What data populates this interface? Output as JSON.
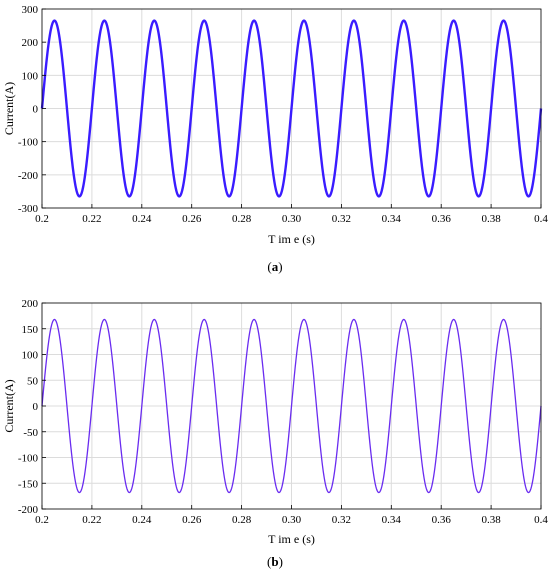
{
  "chart_data": [
    {
      "id": "a",
      "type": "line",
      "caption": "(a)",
      "xlabel": "T im e (s)",
      "ylabel": "Current(A)",
      "xlim": [
        0.2,
        0.4
      ],
      "ylim": [
        -300,
        300
      ],
      "xticks": [
        0.2,
        0.22,
        0.24,
        0.26,
        0.28,
        0.3,
        0.32,
        0.34,
        0.36,
        0.38,
        0.4
      ],
      "xtick_labels": [
        "0.2",
        "0.22",
        "0.24",
        "0.26",
        "0.28",
        "0.30",
        "0.32",
        "0.34",
        "0.36",
        "0.38",
        "0.4"
      ],
      "yticks": [
        300,
        200,
        100,
        0,
        -100,
        -200,
        -300
      ],
      "ytick_labels": [
        "300",
        "200",
        "100",
        "0",
        "-100",
        "-200",
        "-300"
      ],
      "grid": true,
      "series": [
        {
          "color": "#3a1cff",
          "amplitude": 265,
          "frequency_hz": 50,
          "phase_deg": 0,
          "x_range": [
            0.2,
            0.4
          ]
        }
      ]
    },
    {
      "id": "b",
      "type": "line",
      "caption": "(b)",
      "xlabel": "T im e (s)",
      "ylabel": "Current(A)",
      "xlim": [
        0.2,
        0.4
      ],
      "ylim": [
        -200,
        200
      ],
      "xticks": [
        0.2,
        0.22,
        0.24,
        0.26,
        0.28,
        0.3,
        0.32,
        0.34,
        0.36,
        0.38,
        0.4
      ],
      "xtick_labels": [
        "0.2",
        "0.22",
        "0.24",
        "0.26",
        "0.28",
        "0.30",
        "0.32",
        "0.34",
        "0.36",
        "0.38",
        "0.4"
      ],
      "yticks": [
        200,
        150,
        100,
        50,
        0,
        -50,
        -100,
        -150,
        -200
      ],
      "ytick_labels": [
        "200",
        "150",
        "100",
        "50",
        "0",
        "-50",
        "-100",
        "-150",
        "-200"
      ],
      "grid": true,
      "series": [
        {
          "color": "#6a2cf0",
          "amplitude": 168,
          "frequency_hz": 50,
          "phase_deg": 0,
          "x_range": [
            0.2,
            0.4
          ]
        }
      ]
    }
  ]
}
